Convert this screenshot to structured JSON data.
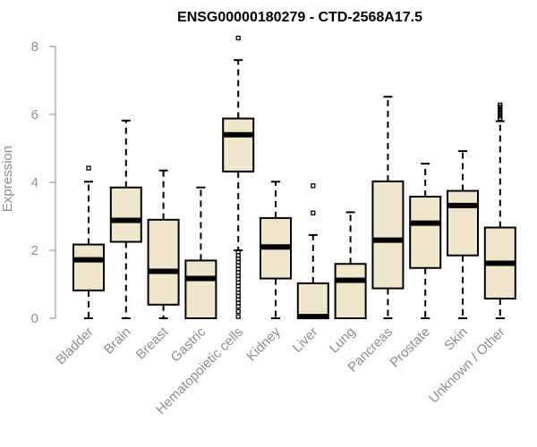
{
  "chart_data": {
    "type": "box",
    "title": "ENSG00000180279 - CTD-2568A17.5",
    "ylabel": "Expression",
    "xlabel": "",
    "ylim": [
      0,
      8.5
    ],
    "yticks": [
      "0",
      "2",
      "4",
      "6",
      "8"
    ],
    "box_fill": "#efe6cc",
    "categories": [
      "Bladder",
      "Brain",
      "Breast",
      "Gastric",
      "Hematopoietic cells",
      "Kidney",
      "Liver",
      "Lung",
      "Pancreas",
      "Prostate",
      "Skin",
      "Unknown / Other"
    ],
    "boxes": [
      {
        "min": 0,
        "q1": 0.82,
        "median": 1.72,
        "q3": 2.17,
        "max": 4.02,
        "outliers": [
          4.42
        ]
      },
      {
        "min": 0,
        "q1": 2.25,
        "median": 2.88,
        "q3": 3.85,
        "max": 5.82,
        "outliers": []
      },
      {
        "min": 0,
        "q1": 0.4,
        "median": 1.38,
        "q3": 2.9,
        "max": 4.35,
        "outliers": []
      },
      {
        "min": 0,
        "q1": 0,
        "median": 1.17,
        "q3": 1.7,
        "max": 3.85,
        "outliers": []
      },
      {
        "min": 2.0,
        "q1": 4.32,
        "median": 5.4,
        "q3": 5.88,
        "max": 7.6,
        "outliers": [
          8.25,
          1.95,
          1.85,
          1.75,
          1.65,
          1.55,
          1.45,
          1.35,
          1.25,
          1.15,
          1.05,
          0.95,
          0.85,
          0.75,
          0.65,
          0.55,
          0.45,
          0.35,
          0.2,
          0.05
        ]
      },
      {
        "min": 0,
        "q1": 1.17,
        "median": 2.1,
        "q3": 2.95,
        "max": 4.02,
        "outliers": []
      },
      {
        "min": 0,
        "q1": 0,
        "median": 0.05,
        "q3": 1.03,
        "max": 2.45,
        "outliers": [
          3.1,
          3.9
        ]
      },
      {
        "min": 0,
        "q1": 0,
        "median": 1.12,
        "q3": 1.6,
        "max": 3.12,
        "outliers": []
      },
      {
        "min": 0,
        "q1": 0.88,
        "median": 2.3,
        "q3": 4.03,
        "max": 6.52,
        "outliers": []
      },
      {
        "min": 0,
        "q1": 1.48,
        "median": 2.8,
        "q3": 3.58,
        "max": 4.55,
        "outliers": []
      },
      {
        "min": 0,
        "q1": 1.85,
        "median": 3.32,
        "q3": 3.75,
        "max": 4.92,
        "outliers": []
      },
      {
        "min": 0,
        "q1": 0.58,
        "median": 1.62,
        "q3": 2.67,
        "max": 5.8,
        "outliers": [
          5.88,
          5.95,
          6.02,
          6.08,
          6.15,
          6.22,
          6.28
        ]
      }
    ]
  }
}
